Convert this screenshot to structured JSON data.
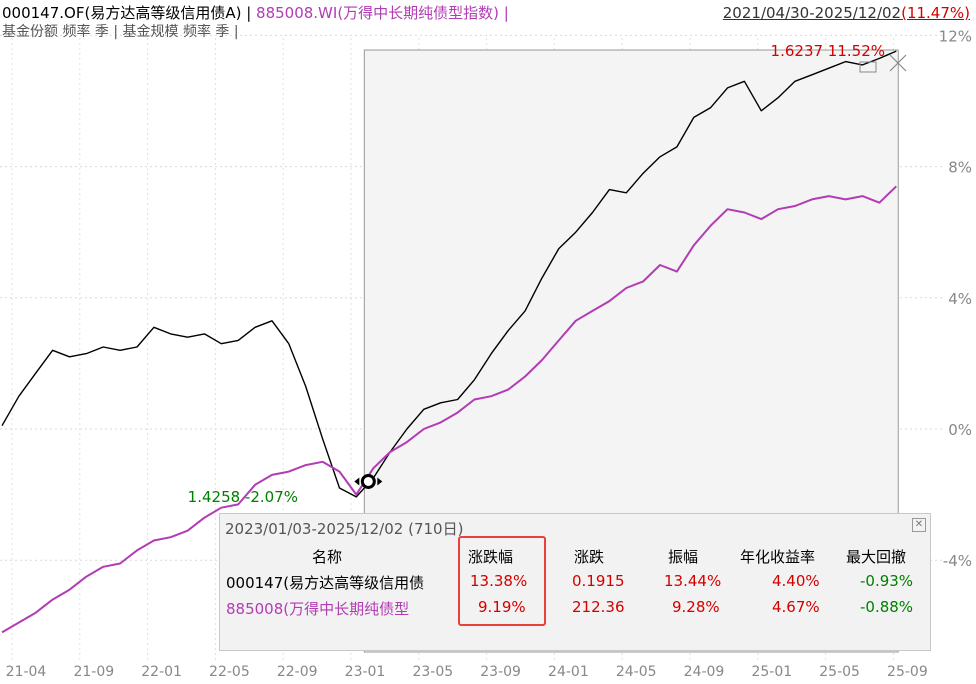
{
  "header": {
    "series1_label": "000147.OF(易方达高等级信用债A)",
    "sep1": " | ",
    "series2_label": "885008.WI(万得中长期纯债型指数)",
    "sep2": " |",
    "sub_label": "基金份额 频率 季 | 基金规模 频率 季 |",
    "date_range": "2021/04/30-2025/12/02",
    "date_range_pct": "(11.47%)"
  },
  "colors": {
    "series1": "#000000",
    "series2": "#b23cb4",
    "positive": "#d40000",
    "negative": "#008000",
    "highlight": "#e8413c"
  },
  "chart_data": {
    "type": "line",
    "x_tick_labels": [
      "21-04",
      "21-09",
      "22-01",
      "22-05",
      "22-09",
      "23-01",
      "23-05",
      "23-09",
      "24-01",
      "24-05",
      "24-09",
      "25-01",
      "25-05",
      "25-09"
    ],
    "y_tick_labels": [
      "12%",
      "8%",
      "4%",
      "0%",
      "-4%"
    ],
    "ylim": [
      -4.9,
      12
    ],
    "x_range": [
      0,
      55
    ],
    "series": [
      {
        "name": "000147.OF(易方达高等级信用债A)",
        "color": "#000000",
        "points": [
          [
            0,
            0.1
          ],
          [
            1,
            1
          ],
          [
            2,
            1.7
          ],
          [
            3,
            2.4
          ],
          [
            4,
            2.2
          ],
          [
            5,
            2.3
          ],
          [
            6,
            2.5
          ],
          [
            7,
            2.4
          ],
          [
            8,
            2.5
          ],
          [
            9,
            3.1
          ],
          [
            10,
            2.9
          ],
          [
            11,
            2.8
          ],
          [
            12,
            2.9
          ],
          [
            13,
            2.6
          ],
          [
            14,
            2.7
          ],
          [
            15,
            3.1
          ],
          [
            16,
            3.3
          ],
          [
            17,
            2.6
          ],
          [
            18,
            1.3
          ],
          [
            19,
            -0.3
          ],
          [
            20,
            -1.8
          ],
          [
            21,
            -2.07
          ],
          [
            22,
            -1.5
          ],
          [
            23,
            -0.7
          ],
          [
            24,
            0
          ],
          [
            25,
            0.6
          ],
          [
            26,
            0.8
          ],
          [
            27,
            0.9
          ],
          [
            28,
            1.5
          ],
          [
            29,
            2.3
          ],
          [
            30,
            3
          ],
          [
            31,
            3.6
          ],
          [
            32,
            4.6
          ],
          [
            33,
            5.5
          ],
          [
            34,
            6
          ],
          [
            35,
            6.6
          ],
          [
            36,
            7.3
          ],
          [
            37,
            7.2
          ],
          [
            38,
            7.8
          ],
          [
            39,
            8.3
          ],
          [
            40,
            8.6
          ],
          [
            41,
            9.5
          ],
          [
            42,
            9.8
          ],
          [
            43,
            10.4
          ],
          [
            44,
            10.6
          ],
          [
            45,
            9.7
          ],
          [
            46,
            10.1
          ],
          [
            47,
            10.6
          ],
          [
            48,
            10.8
          ],
          [
            49,
            11
          ],
          [
            50,
            11.2
          ],
          [
            51,
            11.1
          ],
          [
            52,
            11.3
          ],
          [
            53,
            11.52
          ]
        ]
      },
      {
        "name": "885008.WI(万得中长期纯债型指数)",
        "color": "#b23cb4",
        "points": [
          [
            0,
            -6.2
          ],
          [
            1,
            -5.9
          ],
          [
            2,
            -5.6
          ],
          [
            3,
            -5.2
          ],
          [
            4,
            -4.9
          ],
          [
            5,
            -4.5
          ],
          [
            6,
            -4.2
          ],
          [
            7,
            -4.1
          ],
          [
            8,
            -3.7
          ],
          [
            9,
            -3.4
          ],
          [
            10,
            -3.3
          ],
          [
            11,
            -3.1
          ],
          [
            12,
            -2.7
          ],
          [
            13,
            -2.4
          ],
          [
            14,
            -2.3
          ],
          [
            15,
            -1.7
          ],
          [
            16,
            -1.4
          ],
          [
            17,
            -1.3
          ],
          [
            18,
            -1.1
          ],
          [
            19,
            -1
          ],
          [
            20,
            -1.3
          ],
          [
            21,
            -2
          ],
          [
            22,
            -1.2
          ],
          [
            23,
            -0.7
          ],
          [
            24,
            -0.4
          ],
          [
            25,
            0
          ],
          [
            26,
            0.2
          ],
          [
            27,
            0.5
          ],
          [
            28,
            0.9
          ],
          [
            29,
            1
          ],
          [
            30,
            1.2
          ],
          [
            31,
            1.6
          ],
          [
            32,
            2.1
          ],
          [
            33,
            2.7
          ],
          [
            34,
            3.3
          ],
          [
            35,
            3.6
          ],
          [
            36,
            3.9
          ],
          [
            37,
            4.3
          ],
          [
            38,
            4.5
          ],
          [
            39,
            5.0
          ],
          [
            40,
            4.8
          ],
          [
            41,
            5.6
          ],
          [
            42,
            6.2
          ],
          [
            43,
            6.7
          ],
          [
            44,
            6.6
          ],
          [
            45,
            6.4
          ],
          [
            46,
            6.7
          ],
          [
            47,
            6.8
          ],
          [
            48,
            7.0
          ],
          [
            49,
            7.1
          ],
          [
            50,
            7.0
          ],
          [
            51,
            7.1
          ],
          [
            52,
            6.9
          ],
          [
            53,
            7.4
          ]
        ]
      }
    ],
    "annotations": [
      {
        "text": "1.4258 -2.07%",
        "color": "#008000"
      },
      {
        "text": "1.6237 11.52%",
        "color": "#d40000"
      }
    ],
    "grid": true,
    "selected_range_from": 21,
    "selected_range_to": 53
  },
  "stats_panel": {
    "title": "2023/01/03-2025/12/02 (710日)",
    "headers": [
      "名称",
      "涨跌幅",
      "涨跌",
      "振幅",
      "年化收益率",
      "最大回撤"
    ],
    "rows": [
      {
        "name": "000147(易方达高等级信用债",
        "values": [
          "13.38%",
          "0.1915",
          "13.44%",
          "4.40%",
          "-0.93%"
        ],
        "color": "#000000"
      },
      {
        "name": "885008(万得中长期纯债型",
        "values": [
          "9.19%",
          "212.36",
          "9.28%",
          "4.67%",
          "-0.88%"
        ],
        "color": "#b23cb4"
      }
    ],
    "value_colors": [
      "#d40000",
      "#d40000",
      "#d40000",
      "#d40000",
      "#008000"
    ]
  }
}
